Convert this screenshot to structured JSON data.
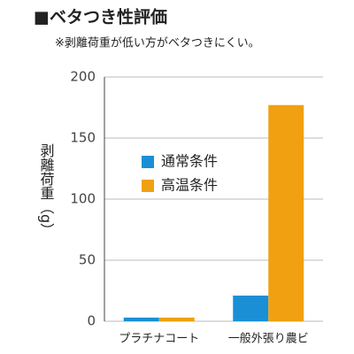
{
  "chart_data": {
    "type": "bar",
    "title": "■ベタつき性評価",
    "subtitle": "※剥離荷重が低い方がベタつきにくい。",
    "y_label": "剥離荷重（g）",
    "categories": [
      "プラチナコート",
      "一般外張り農ビ"
    ],
    "series": [
      {
        "name": "通常条件",
        "color": "#1a8fd6",
        "values": [
          3,
          21
        ]
      },
      {
        "name": "高温条件",
        "color": "#f0a010",
        "values": [
          3,
          177
        ]
      }
    ],
    "ylim": [
      0,
      200
    ],
    "yticks": [
      0,
      50,
      100,
      150,
      200
    ],
    "grid": true
  }
}
